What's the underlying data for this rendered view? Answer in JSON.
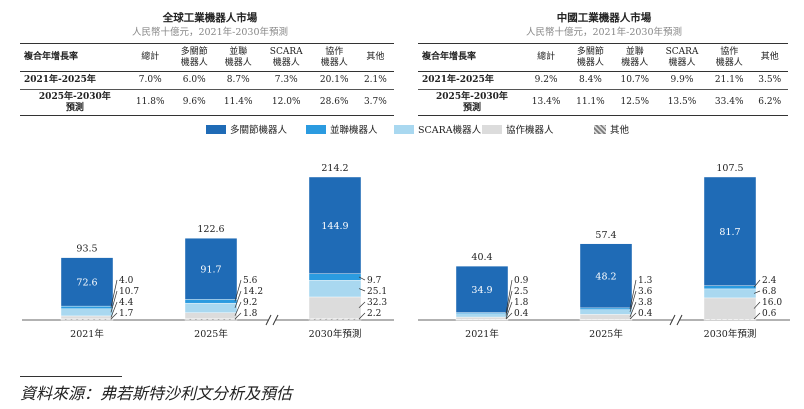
{
  "colors": {
    "articulated": "#1f6bb6",
    "scara_like": "#2b9be0",
    "scara": "#a9d8f0",
    "collab": "#dcdcdc",
    "other": "#8c8c8c"
  },
  "legend": [
    {
      "label": "多關節機器人",
      "color_key": "articulated",
      "hatch": false
    },
    {
      "label": "並聯機器人",
      "color_key": "scara_like",
      "hatch": false
    },
    {
      "label": "SCARA機器人",
      "color_key": "scara",
      "hatch": false
    },
    {
      "label": "協作機器人",
      "color_key": "collab",
      "hatch": false
    },
    {
      "label": "其他",
      "color_key": "other",
      "hatch": true
    }
  ],
  "panels": [
    {
      "title": "全球工業機器人市場",
      "subtitle": "人民幣十億元，2021年-2030年預測",
      "table": {
        "row_header": "複合年增長率",
        "columns": [
          "總計",
          "多關節\n機器人",
          "並聯\n機器人",
          "SCARA\n機器人",
          "協作\n機器人",
          "其他"
        ],
        "rows": [
          {
            "label": "2021年-2025年",
            "values": [
              "7.0%",
              "6.0%",
              "8.7%",
              "7.3%",
              "20.1%",
              "2.1%"
            ]
          },
          {
            "label": "2025年-2030年\n預測",
            "values": [
              "11.8%",
              "9.6%",
              "11.4%",
              "12.0%",
              "28.6%",
              "3.7%"
            ]
          }
        ]
      }
    },
    {
      "title": "中國工業機器人市場",
      "subtitle": "人民幣十億元，2021年-2030年預測",
      "table": {
        "row_header": "複合年增長率",
        "columns": [
          "總計",
          "多關節\n機器人",
          "並聯\n機器人",
          "SCARA\n機器人",
          "協作\n機器人",
          "其他"
        ],
        "rows": [
          {
            "label": "2021年-2025年",
            "values": [
              "9.2%",
              "8.4%",
              "10.7%",
              "9.9%",
              "21.1%",
              "3.5%"
            ]
          },
          {
            "label": "2025年-2030年\n預測",
            "values": [
              "13.4%",
              "11.1%",
              "12.5%",
              "13.5%",
              "33.4%",
              "6.2%"
            ]
          }
        ]
      }
    }
  ],
  "chart_data": [
    {
      "type": "bar",
      "stacked": true,
      "title": "全球工業機器人市場",
      "categories": [
        "2021年",
        "2025年",
        "2030年預測"
      ],
      "totals": [
        "93.5",
        "122.6",
        "214.2"
      ],
      "series": [
        {
          "name": "多關節機器人",
          "values": [
            72.6,
            91.7,
            144.9
          ],
          "labels": [
            "72.6",
            "91.7",
            "144.9"
          ]
        },
        {
          "name": "並聯機器人",
          "values": [
            4.0,
            5.6,
            9.7
          ],
          "labels": [
            "4.0",
            "5.6",
            "9.7"
          ]
        },
        {
          "name": "SCARA機器人",
          "values": [
            10.7,
            14.2,
            25.1
          ],
          "labels": [
            "10.7",
            "14.2",
            "25.1"
          ]
        },
        {
          "name": "協作機器人",
          "values": [
            4.4,
            9.2,
            32.3
          ],
          "labels": [
            "4.4",
            "9.2",
            "32.3"
          ]
        },
        {
          "name": "其他",
          "values": [
            1.7,
            1.8,
            2.2
          ],
          "labels": [
            "1.7",
            "1.8",
            "2.2"
          ]
        }
      ],
      "ymax": 214.2,
      "axis_break": true
    },
    {
      "type": "bar",
      "stacked": true,
      "title": "中國工業機器人市場",
      "categories": [
        "2021年",
        "2025年",
        "2030年預測"
      ],
      "totals": [
        "40.4",
        "57.4",
        "107.5"
      ],
      "series": [
        {
          "name": "多關節機器人",
          "values": [
            34.9,
            48.2,
            81.7
          ],
          "labels": [
            "34.9",
            "48.2",
            "81.7"
          ]
        },
        {
          "name": "並聯機器人",
          "values": [
            0.9,
            1.3,
            2.4
          ],
          "labels": [
            "0.9",
            "1.3",
            "2.4"
          ]
        },
        {
          "name": "SCARA機器人",
          "values": [
            2.5,
            3.6,
            6.8
          ],
          "labels": [
            "2.5",
            "3.6",
            "6.8"
          ]
        },
        {
          "name": "協作機器人",
          "values": [
            1.8,
            3.8,
            16.0
          ],
          "labels": [
            "1.8",
            "3.8",
            "16.0"
          ]
        },
        {
          "name": "其他",
          "values": [
            0.4,
            0.4,
            0.6
          ],
          "labels": [
            "0.4",
            "0.4",
            "0.6"
          ]
        }
      ],
      "ymax": 107.5,
      "axis_break": true
    }
  ],
  "source": "資料來源：弗若斯特沙利文分析及預估"
}
